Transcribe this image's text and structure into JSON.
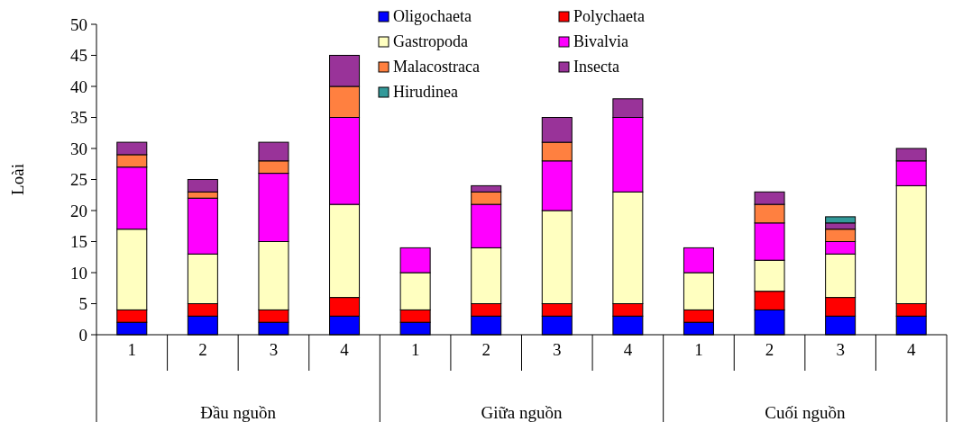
{
  "chart_data": {
    "type": "bar",
    "stacked": true,
    "ylabel": "Loài",
    "categories": [
      "1",
      "2",
      "3",
      "4",
      "1",
      "2",
      "3",
      "4",
      "1",
      "2",
      "3",
      "4"
    ],
    "annotations": [
      "Đầu nguồn",
      "Giữa nguồn",
      "Cuối nguồn"
    ],
    "ylim": [
      0,
      50
    ],
    "yticks": [
      0,
      5,
      10,
      15,
      20,
      25,
      30,
      35,
      40,
      45,
      50
    ],
    "grid": false,
    "legend": "top",
    "series": [
      {
        "name": "Oligochaeta",
        "color": "#0000ff",
        "values": [
          2,
          3,
          2,
          3,
          2,
          3,
          3,
          3,
          2,
          4,
          3,
          3
        ]
      },
      {
        "name": "Polychaeta",
        "color": "#ff0000",
        "values": [
          2,
          2,
          2,
          3,
          2,
          2,
          2,
          2,
          2,
          3,
          3,
          2
        ]
      },
      {
        "name": "Gastropoda",
        "color": "#ffffc0",
        "values": [
          13,
          8,
          11,
          15,
          6,
          9,
          15,
          18,
          6,
          5,
          7,
          19
        ]
      },
      {
        "name": "Bivalvia",
        "color": "#ff00ff",
        "values": [
          10,
          9,
          11,
          14,
          4,
          7,
          8,
          12,
          4,
          6,
          2,
          4
        ]
      },
      {
        "name": "Malacostraca",
        "color": "#ff8040",
        "values": [
          2,
          1,
          2,
          5,
          0,
          2,
          3,
          0,
          0,
          3,
          2,
          0
        ]
      },
      {
        "name": "Insecta",
        "color": "#993399",
        "values": [
          2,
          2,
          3,
          5,
          0,
          1,
          4,
          3,
          0,
          2,
          1,
          2
        ]
      },
      {
        "name": "Hirudinea",
        "color": "#339999",
        "values": [
          0,
          0,
          0,
          0,
          0,
          0,
          0,
          0,
          0,
          0,
          1,
          0
        ]
      }
    ]
  }
}
